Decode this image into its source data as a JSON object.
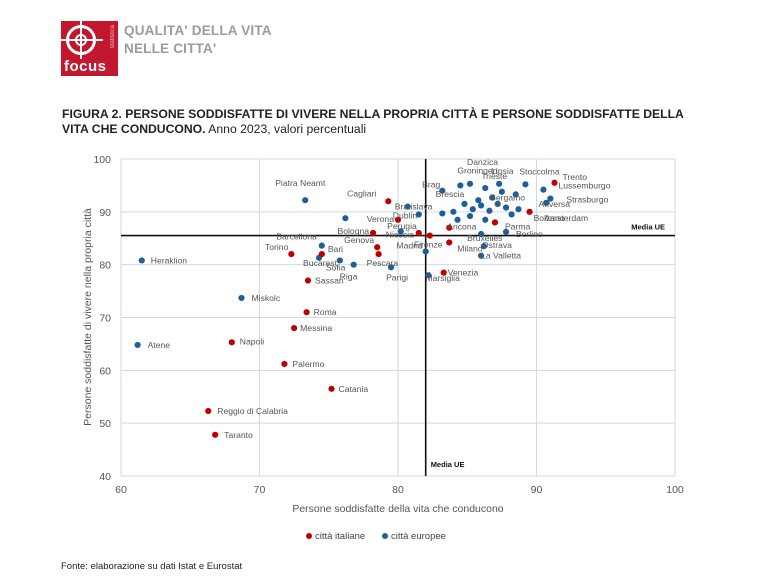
{
  "header": {
    "logo_text": "focus",
    "logo_side_text": "statistica",
    "title_line1": "QUALITA' DELLA VITA",
    "title_line2": "NELLE CITTA'"
  },
  "figure": {
    "title_bold": "FIGURA 2. PERSONE SODDISFATTE DI VIVERE NELLA PROPRIA CITTÀ E PERSONE SODDISFATTE DELLA VITA CHE CONDUCONO.",
    "title_rest": " Anno 2023, valori percentuali"
  },
  "source": "Fonte: elaborazione su dati Istat e Eurostat",
  "chart_data": {
    "type": "scatter",
    "xlabel": "Persone soddisfatte della vita che conducono",
    "ylabel": "Persone soddisfatte di vivere nella propria città",
    "xlim": [
      60,
      100
    ],
    "ylim": [
      40,
      100
    ],
    "x_ticks": [
      60,
      70,
      80,
      90,
      100
    ],
    "y_ticks": [
      40,
      50,
      60,
      70,
      80,
      90,
      100
    ],
    "grid": true,
    "reference_lines": {
      "x": {
        "value": 82,
        "label": "Media UE"
      },
      "y": {
        "value": 85.5,
        "label": "Media UE"
      }
    },
    "legend_position": "bottom",
    "series": [
      {
        "name": "città italiane",
        "color": "#c00000",
        "points": [
          {
            "label": "Trento",
            "x": 91.3,
            "y": 95.5
          },
          {
            "label": "Bolzano",
            "x": 89.5,
            "y": 90
          },
          {
            "label": "Parma",
            "x": 87,
            "y": 88
          },
          {
            "label": "Cagliari",
            "x": 79.3,
            "y": 92
          },
          {
            "label": "Verona",
            "x": 80,
            "y": 88.5
          },
          {
            "label": "Bologna",
            "x": 78.2,
            "y": 86
          },
          {
            "label": "Perugia",
            "x": 81.5,
            "y": 86
          },
          {
            "label": "Ancona",
            "x": 83.7,
            "y": 87
          },
          {
            "label": "Firenze",
            "x": 82.3,
            "y": 85.5
          },
          {
            "label": "Milano",
            "x": 83.7,
            "y": 84.2
          },
          {
            "label": "Genova",
            "x": 78.5,
            "y": 83.3
          },
          {
            "label": "Torino",
            "x": 72.3,
            "y": 82
          },
          {
            "label": "Bari",
            "x": 74.5,
            "y": 82
          },
          {
            "label": "Pescara",
            "x": 78.6,
            "y": 82
          },
          {
            "label": "Venezia",
            "x": 83.3,
            "y": 78.5
          },
          {
            "label": "Sassari",
            "x": 73.5,
            "y": 77
          },
          {
            "label": "Roma",
            "x": 73.4,
            "y": 71
          },
          {
            "label": "Messina",
            "x": 72.5,
            "y": 68
          },
          {
            "label": "Napoli",
            "x": 68,
            "y": 65.3
          },
          {
            "label": "Palermo",
            "x": 71.8,
            "y": 61.2
          },
          {
            "label": "Catania",
            "x": 75.2,
            "y": 56.5
          },
          {
            "label": "Reggio di Calabria",
            "x": 66.3,
            "y": 52.3
          },
          {
            "label": "Taranto",
            "x": 66.8,
            "y": 47.8
          }
        ]
      },
      {
        "name": "città europee",
        "color": "#1f5f99",
        "points": [
          {
            "label": "Danzica",
            "x": 85.2,
            "y": 95.3
          },
          {
            "label": "Groningen",
            "x": 84.5,
            "y": 95
          },
          {
            "label": "Lipsia",
            "x": 87.3,
            "y": 95.3
          },
          {
            "label": "Stoccolma",
            "x": 89.2,
            "y": 95.2
          },
          {
            "label": "Trieste",
            "x": 86.3,
            "y": 94.5
          },
          {
            "label": "Brag",
            "x": 83.2,
            "y": 94
          },
          {
            "label": "Lussemburgo",
            "x": 90.5,
            "y": 94.2
          },
          {
            "label": "Strasburgo",
            "x": 91,
            "y": 92.5
          },
          {
            "label": "Amsterdam",
            "x": 90.7,
            "y": 91.7
          },
          {
            "label": "Anversa",
            "x": 88.7,
            "y": 90.5
          },
          {
            "label": "Bergamo",
            "x": 86.8,
            "y": 92.7
          },
          {
            "label": "Brescia",
            "x": 85.8,
            "y": 92.2
          },
          {
            "label": "Piatra Neamt",
            "x": 73.3,
            "y": 92.2
          },
          {
            "label": "Bratislava",
            "x": 80.7,
            "y": 91
          },
          {
            "label": "Dublin",
            "x": 81.5,
            "y": 89.5
          },
          {
            "label": "Nicosia",
            "x": 80.2,
            "y": 86.3
          },
          {
            "label": "Berlino",
            "x": 87.8,
            "y": 86.2
          },
          {
            "label": "Bruxelles",
            "x": 86,
            "y": 85.8
          },
          {
            "label": "Ostrava",
            "x": 86.2,
            "y": 83.5
          },
          {
            "label": "La Valletta",
            "x": 86,
            "y": 81.7
          },
          {
            "label": "Madrid",
            "x": 82,
            "y": 82.5
          },
          {
            "label": "Barcellona",
            "x": 74.5,
            "y": 83.6
          },
          {
            "label": "Bucarest",
            "x": 74.3,
            "y": 81.3
          },
          {
            "label": "Sofia",
            "x": 75.8,
            "y": 80.8
          },
          {
            "label": "Riga",
            "x": 76.8,
            "y": 80
          },
          {
            "label": "Parigi",
            "x": 79.5,
            "y": 79.5
          },
          {
            "label": "Marsiglia",
            "x": 82.2,
            "y": 78
          },
          {
            "label": "Heraklion",
            "x": 61.5,
            "y": 80.8
          },
          {
            "label": "Miskolc",
            "x": 68.7,
            "y": 73.7
          },
          {
            "label": "Atene",
            "x": 61.2,
            "y": 64.8
          },
          {
            "label": "",
            "x": 76.2,
            "y": 88.8
          },
          {
            "label": "",
            "x": 84,
            "y": 90
          },
          {
            "label": "",
            "x": 84.8,
            "y": 91.5
          },
          {
            "label": "",
            "x": 85.4,
            "y": 90.5
          },
          {
            "label": "",
            "x": 86,
            "y": 91.2
          },
          {
            "label": "",
            "x": 86.6,
            "y": 90.2
          },
          {
            "label": "",
            "x": 87.2,
            "y": 91.5
          },
          {
            "label": "",
            "x": 87.8,
            "y": 90.8
          },
          {
            "label": "",
            "x": 88.2,
            "y": 89.5
          },
          {
            "label": "",
            "x": 85.2,
            "y": 89.2
          },
          {
            "label": "",
            "x": 84.3,
            "y": 88.5
          },
          {
            "label": "",
            "x": 86.3,
            "y": 88.5
          },
          {
            "label": "",
            "x": 83.2,
            "y": 89.7
          },
          {
            "label": "",
            "x": 88.5,
            "y": 93.3
          },
          {
            "label": "",
            "x": 87.5,
            "y": 93.8
          }
        ]
      }
    ]
  }
}
